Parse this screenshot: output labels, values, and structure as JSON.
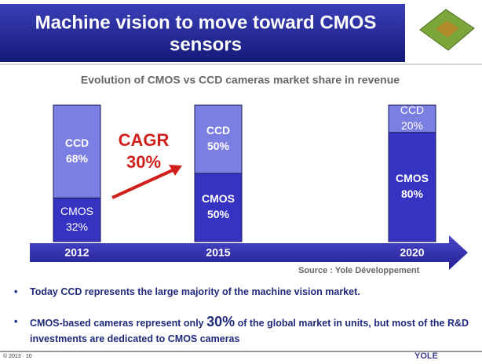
{
  "header": {
    "title_lines": [
      "Machine vision to move toward CMOS",
      "sensors"
    ]
  },
  "chart_data": {
    "type": "bar",
    "stacked": true,
    "title": "Evolution of CMOS vs CCD cameras market share in revenue",
    "categories": [
      "2012",
      "2015",
      "2020"
    ],
    "series": [
      {
        "name": "CMOS",
        "color": "#3632c2",
        "values": [
          32,
          50,
          80
        ],
        "value_labels": [
          "32%",
          "50%",
          "80%"
        ]
      },
      {
        "name": "CCD",
        "color": "#7c7fe2",
        "values": [
          68,
          50,
          20
        ],
        "value_labels": [
          "68%",
          "50%",
          "20%"
        ]
      }
    ],
    "annotation": [
      "CAGR",
      "30%"
    ],
    "source": "Source : Yole Développement"
  },
  "bullets": [
    [
      "Today CCD represents the  large majority of the machine vision market."
    ],
    [
      "CMOS-based cameras represent only ",
      "30%",
      " of the global market in units, but most of the R&D investments are dedicated to CMOS cameras"
    ]
  ],
  "footer": {
    "copyright": "© 2013 · 10",
    "logo": "YOLE"
  }
}
